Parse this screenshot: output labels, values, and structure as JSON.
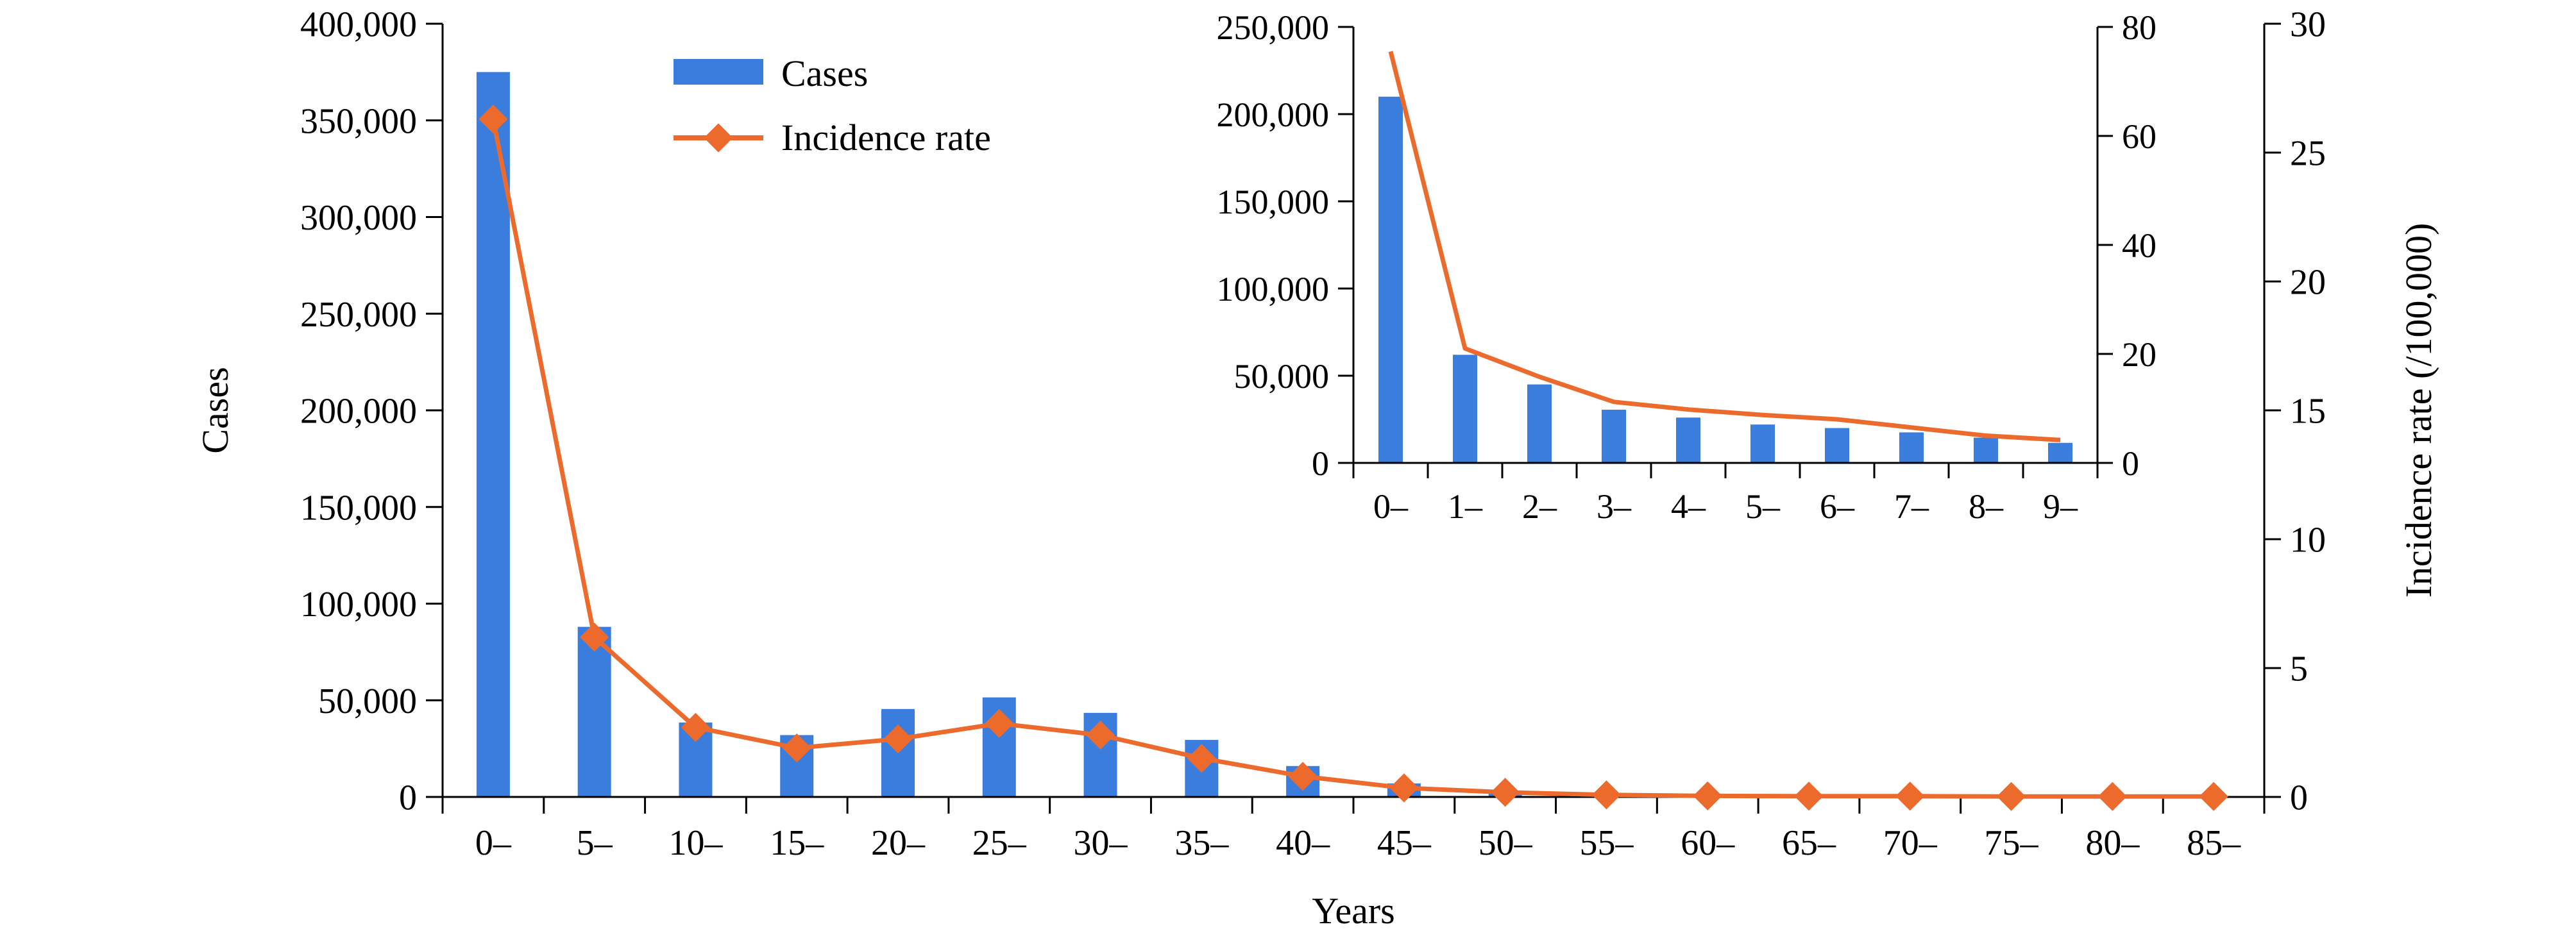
{
  "chart_data": [
    {
      "type": "bar+line",
      "name": "main",
      "categories": [
        "0–",
        "5–",
        "10–",
        "15–",
        "20–",
        "25–",
        "30–",
        "35–",
        "40–",
        "45–",
        "50–",
        "55–",
        "60–",
        "65–",
        "70–",
        "75–",
        "80–",
        "85–"
      ],
      "series": [
        {
          "name": "Cases",
          "kind": "bar",
          "axis": "left",
          "values": [
            375000,
            88000,
            38500,
            32000,
            45500,
            51500,
            43500,
            29500,
            16000,
            7000,
            2500,
            1000,
            500,
            300,
            200,
            150,
            100,
            50
          ]
        },
        {
          "name": "Incidence rate",
          "kind": "line-diamond",
          "axis": "right",
          "values": [
            26.3,
            6.2,
            2.7,
            1.9,
            2.25,
            2.85,
            2.4,
            1.5,
            0.8,
            0.35,
            0.18,
            0.08,
            0.04,
            0.03,
            0.03,
            0.02,
            0.02,
            0.02
          ]
        }
      ],
      "xlabel": "Years",
      "ylabel": "Cases",
      "y2label": "Incidence rate (/100,000)",
      "ylim": [
        0,
        400000
      ],
      "y2lim": [
        0,
        30
      ],
      "yticks": [
        "0",
        "50,000",
        "100,000",
        "150,000",
        "200,000",
        "250,000",
        "300,000",
        "350,000",
        "400,000"
      ],
      "y2ticks": [
        "0",
        "5",
        "10",
        "15",
        "20",
        "25",
        "30"
      ],
      "legend": {
        "position": "top-center",
        "items": [
          "Cases",
          "Incidence rate"
        ]
      }
    },
    {
      "type": "bar+line",
      "name": "inset",
      "categories": [
        "0–",
        "1–",
        "2–",
        "3–",
        "4–",
        "5–",
        "6–",
        "7–",
        "8–",
        "9–"
      ],
      "series": [
        {
          "name": "Cases",
          "kind": "bar",
          "axis": "left",
          "values": [
            210000,
            62000,
            45000,
            30500,
            26000,
            22000,
            20000,
            17500,
            14500,
            11500
          ]
        },
        {
          "name": "Incidence rate",
          "kind": "line",
          "axis": "right",
          "values": [
            75.5,
            21,
            15.8,
            11.2,
            9.8,
            8.8,
            8,
            6.5,
            5,
            4.2
          ]
        }
      ],
      "ylim": [
        0,
        250000
      ],
      "y2lim": [
        0,
        80
      ],
      "yticks": [
        "0",
        "50,000",
        "100,000",
        "150,000",
        "200,000",
        "250,000"
      ],
      "y2ticks": [
        "0",
        "20",
        "40",
        "60",
        "80"
      ]
    }
  ],
  "colors": {
    "bar": "#3b7ddd",
    "line": "#ec6a2c",
    "axis": "#000000"
  }
}
